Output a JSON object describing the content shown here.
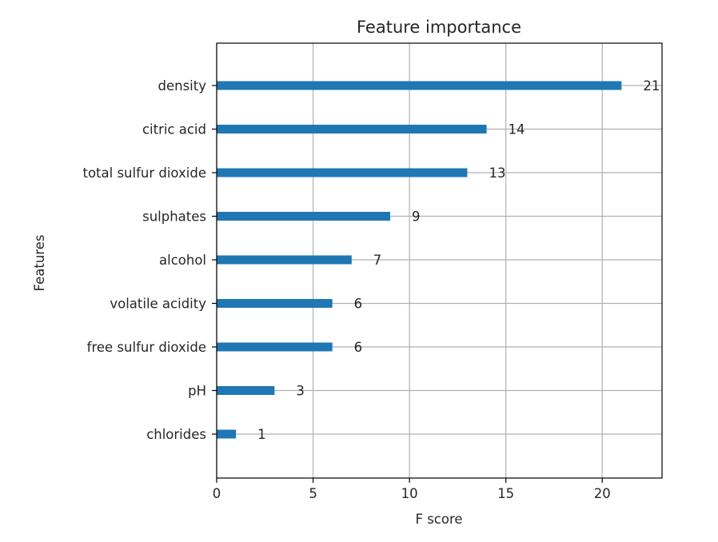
{
  "chart_data": {
    "type": "bar",
    "orientation": "horizontal",
    "title": "Feature importance",
    "xlabel": "F score",
    "ylabel": "Features",
    "categories": [
      "density",
      "citric acid",
      "total sulfur dioxide",
      "sulphates",
      "alcohol",
      "volatile acidity",
      "free sulfur dioxide",
      "pH",
      "chlorides"
    ],
    "values": [
      21,
      14,
      13,
      9,
      7,
      6,
      6,
      3,
      1
    ],
    "data_labels": [
      "21",
      "14",
      "13",
      "9",
      "7",
      "6",
      "6",
      "3",
      "1"
    ],
    "xticks": [
      0,
      5,
      10,
      15,
      20
    ],
    "xlim": [
      0,
      23.1
    ],
    "grid": true,
    "bar_color": "#1f77b4"
  }
}
